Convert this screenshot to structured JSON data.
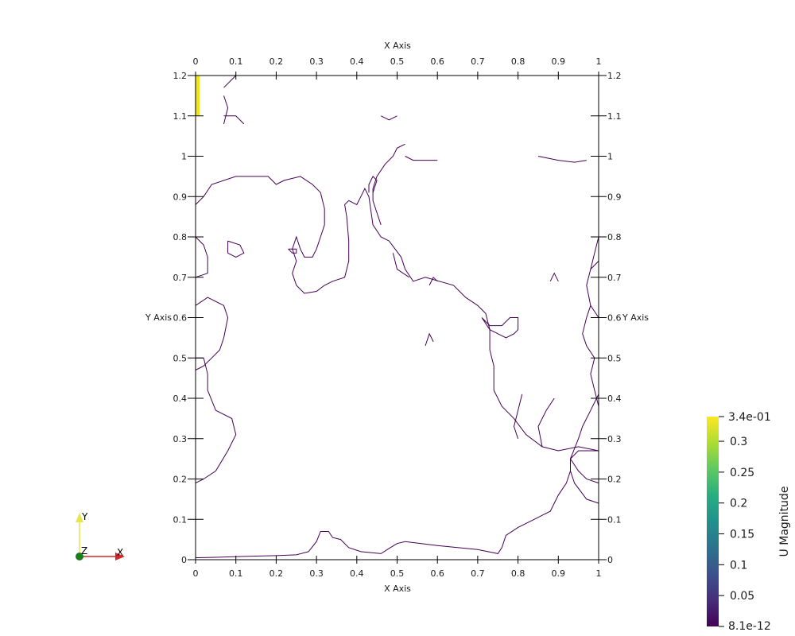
{
  "chart_data": {
    "type": "contour",
    "xlabel": "X Axis",
    "ylabel": "Y Axis",
    "xlim": [
      0,
      1
    ],
    "ylim": [
      0,
      1.2
    ],
    "xticks": [
      "0",
      "0.1",
      "0.2",
      "0.3",
      "0.4",
      "0.5",
      "0.6",
      "0.7",
      "0.8",
      "0.9",
      "1"
    ],
    "yticks": [
      "0",
      "0.1",
      "0.2",
      "0.3",
      "0.4",
      "0.5",
      "0.6",
      "0.7",
      "0.8",
      "0.9",
      "1",
      "1.1",
      "1.2"
    ],
    "contour_color": "#440154",
    "inlet_color": "#f0e51f",
    "inlet_region": {
      "x": [
        0,
        0.01
      ],
      "y": [
        1.1,
        1.2
      ]
    },
    "contours": [
      [
        [
          0.0,
          0.005
        ],
        [
          0.05,
          0.006
        ],
        [
          0.12,
          0.008
        ],
        [
          0.2,
          0.01
        ],
        [
          0.25,
          0.012
        ],
        [
          0.28,
          0.02
        ],
        [
          0.3,
          0.045
        ],
        [
          0.31,
          0.07
        ],
        [
          0.33,
          0.07
        ],
        [
          0.34,
          0.055
        ],
        [
          0.36,
          0.05
        ],
        [
          0.38,
          0.03
        ],
        [
          0.41,
          0.02
        ],
        [
          0.44,
          0.017
        ],
        [
          0.46,
          0.015
        ],
        [
          0.48,
          0.028
        ],
        [
          0.5,
          0.04
        ],
        [
          0.52,
          0.045
        ],
        [
          0.56,
          0.04
        ],
        [
          0.6,
          0.035
        ],
        [
          0.65,
          0.03
        ],
        [
          0.7,
          0.025
        ],
        [
          0.75,
          0.015
        ],
        [
          0.76,
          0.03
        ],
        [
          0.77,
          0.06
        ],
        [
          0.8,
          0.08
        ],
        [
          0.84,
          0.1
        ],
        [
          0.86,
          0.11
        ],
        [
          0.88,
          0.12
        ],
        [
          0.89,
          0.14
        ],
        [
          0.9,
          0.16
        ],
        [
          0.92,
          0.19
        ],
        [
          0.93,
          0.22
        ],
        [
          0.93,
          0.25
        ],
        [
          0.95,
          0.27
        ],
        [
          0.98,
          0.27
        ],
        [
          1.0,
          0.27
        ]
      ],
      [
        [
          0.0,
          0.19
        ],
        [
          0.02,
          0.2
        ],
        [
          0.05,
          0.22
        ],
        [
          0.08,
          0.27
        ],
        [
          0.1,
          0.31
        ],
        [
          0.09,
          0.35
        ],
        [
          0.05,
          0.37
        ],
        [
          0.03,
          0.42
        ],
        [
          0.03,
          0.46
        ],
        [
          0.02,
          0.5
        ],
        [
          0.0,
          0.5
        ]
      ],
      [
        [
          0.0,
          0.63
        ],
        [
          0.03,
          0.65
        ],
        [
          0.07,
          0.63
        ],
        [
          0.08,
          0.6
        ],
        [
          0.07,
          0.55
        ],
        [
          0.06,
          0.52
        ],
        [
          0.04,
          0.5
        ],
        [
          0.02,
          0.48
        ],
        [
          0.0,
          0.47
        ]
      ],
      [
        [
          0.0,
          0.7
        ],
        [
          0.03,
          0.71
        ],
        [
          0.03,
          0.75
        ],
        [
          0.02,
          0.78
        ],
        [
          0.0,
          0.8
        ]
      ],
      [
        [
          0.0,
          0.88
        ],
        [
          0.02,
          0.9
        ],
        [
          0.04,
          0.93
        ],
        [
          0.1,
          0.95
        ],
        [
          0.18,
          0.95
        ],
        [
          0.2,
          0.93
        ],
        [
          0.22,
          0.94
        ],
        [
          0.26,
          0.95
        ],
        [
          0.29,
          0.93
        ],
        [
          0.31,
          0.91
        ],
        [
          0.32,
          0.87
        ],
        [
          0.32,
          0.83
        ],
        [
          0.31,
          0.8
        ],
        [
          0.3,
          0.77
        ],
        [
          0.29,
          0.75
        ],
        [
          0.27,
          0.75
        ],
        [
          0.26,
          0.77
        ],
        [
          0.25,
          0.8
        ],
        [
          0.24,
          0.77
        ],
        [
          0.25,
          0.74
        ],
        [
          0.24,
          0.71
        ],
        [
          0.25,
          0.68
        ],
        [
          0.27,
          0.66
        ],
        [
          0.3,
          0.665
        ],
        [
          0.32,
          0.68
        ],
        [
          0.34,
          0.69
        ],
        [
          0.37,
          0.7
        ],
        [
          0.38,
          0.74
        ],
        [
          0.38,
          0.79
        ],
        [
          0.375,
          0.85
        ],
        [
          0.37,
          0.88
        ],
        [
          0.38,
          0.89
        ],
        [
          0.4,
          0.88
        ],
        [
          0.41,
          0.9
        ],
        [
          0.42,
          0.92
        ],
        [
          0.43,
          0.9
        ],
        [
          0.44,
          0.83
        ],
        [
          0.46,
          0.8
        ],
        [
          0.48,
          0.79
        ],
        [
          0.51,
          0.75
        ],
        [
          0.52,
          0.72
        ],
        [
          0.54,
          0.69
        ],
        [
          0.57,
          0.7
        ],
        [
          0.64,
          0.68
        ],
        [
          0.67,
          0.65
        ],
        [
          0.7,
          0.63
        ],
        [
          0.72,
          0.61
        ],
        [
          0.73,
          0.57
        ],
        [
          0.73,
          0.52
        ],
        [
          0.74,
          0.48
        ],
        [
          0.74,
          0.42
        ],
        [
          0.76,
          0.38
        ],
        [
          0.79,
          0.35
        ],
        [
          0.82,
          0.31
        ],
        [
          0.86,
          0.28
        ],
        [
          0.9,
          0.27
        ],
        [
          0.95,
          0.28
        ],
        [
          1.0,
          0.27
        ]
      ],
      [
        [
          0.46,
          0.83
        ],
        [
          0.45,
          0.86
        ],
        [
          0.44,
          0.89
        ],
        [
          0.44,
          0.92
        ],
        [
          0.45,
          0.95
        ],
        [
          0.47,
          0.98
        ],
        [
          0.49,
          1.0
        ],
        [
          0.5,
          1.02
        ],
        [
          0.52,
          1.03
        ]
      ],
      [
        [
          0.49,
          0.76
        ],
        [
          0.5,
          0.72
        ],
        [
          0.53,
          0.7
        ]
      ],
      [
        [
          0.08,
          0.79
        ],
        [
          0.11,
          0.78
        ],
        [
          0.12,
          0.76
        ],
        [
          0.1,
          0.75
        ],
        [
          0.08,
          0.76
        ],
        [
          0.08,
          0.79
        ]
      ],
      [
        [
          0.23,
          0.77
        ],
        [
          0.24,
          0.76
        ],
        [
          0.25,
          0.76
        ],
        [
          0.25,
          0.77
        ],
        [
          0.23,
          0.77
        ]
      ],
      [
        [
          0.71,
          0.6
        ],
        [
          0.73,
          0.57
        ],
        [
          0.75,
          0.56
        ],
        [
          0.77,
          0.55
        ],
        [
          0.79,
          0.56
        ],
        [
          0.8,
          0.57
        ],
        [
          0.8,
          0.6
        ],
        [
          0.78,
          0.6
        ],
        [
          0.76,
          0.58
        ],
        [
          0.73,
          0.58
        ],
        [
          0.71,
          0.6
        ]
      ],
      [
        [
          0.85,
          1.0
        ],
        [
          0.9,
          0.99
        ],
        [
          0.94,
          0.985
        ],
        [
          0.97,
          0.99
        ]
      ],
      [
        [
          0.52,
          1.0
        ],
        [
          0.54,
          0.99
        ],
        [
          0.56,
          0.99
        ],
        [
          0.6,
          0.99
        ]
      ],
      [
        [
          0.43,
          0.91
        ],
        [
          0.43,
          0.93
        ],
        [
          0.44,
          0.95
        ],
        [
          0.45,
          0.94
        ],
        [
          0.44,
          0.91
        ]
      ],
      [
        [
          0.46,
          1.1
        ],
        [
          0.48,
          1.09
        ],
        [
          0.5,
          1.1
        ]
      ],
      [
        [
          0.07,
          1.17
        ],
        [
          0.09,
          1.19
        ],
        [
          0.1,
          1.2
        ]
      ],
      [
        [
          0.07,
          1.15
        ],
        [
          0.08,
          1.12
        ],
        [
          0.07,
          1.08
        ]
      ],
      [
        [
          0.07,
          1.1
        ],
        [
          0.1,
          1.1
        ],
        [
          0.12,
          1.08
        ]
      ],
      [
        [
          1.0,
          0.41
        ],
        [
          0.98,
          0.37
        ],
        [
          0.96,
          0.33
        ],
        [
          0.95,
          0.3
        ],
        [
          0.93,
          0.25
        ],
        [
          0.93,
          0.22
        ],
        [
          0.94,
          0.19
        ],
        [
          0.97,
          0.15
        ],
        [
          1.0,
          0.14
        ]
      ],
      [
        [
          1.0,
          0.74
        ],
        [
          0.98,
          0.72
        ],
        [
          0.97,
          0.68
        ],
        [
          0.98,
          0.63
        ],
        [
          1.0,
          0.6
        ]
      ],
      [
        [
          1.0,
          0.8
        ],
        [
          0.99,
          0.76
        ],
        [
          0.98,
          0.72
        ]
      ],
      [
        [
          1.0,
          0.38
        ],
        [
          0.99,
          0.42
        ],
        [
          0.98,
          0.46
        ],
        [
          0.99,
          0.5
        ],
        [
          0.97,
          0.53
        ],
        [
          0.96,
          0.56
        ],
        [
          0.97,
          0.6
        ],
        [
          0.98,
          0.63
        ]
      ],
      [
        [
          0.8,
          0.3
        ],
        [
          0.79,
          0.33
        ],
        [
          0.8,
          0.37
        ],
        [
          0.81,
          0.41
        ]
      ],
      [
        [
          0.86,
          0.28
        ],
        [
          0.85,
          0.33
        ],
        [
          0.87,
          0.37
        ],
        [
          0.89,
          0.4
        ]
      ],
      [
        [
          0.93,
          0.25
        ],
        [
          0.95,
          0.22
        ],
        [
          0.97,
          0.2
        ],
        [
          1.0,
          0.19
        ]
      ],
      [
        [
          0.58,
          0.68
        ],
        [
          0.59,
          0.7
        ],
        [
          0.6,
          0.69
        ]
      ],
      [
        [
          0.57,
          0.53
        ],
        [
          0.58,
          0.56
        ],
        [
          0.59,
          0.54
        ]
      ],
      [
        [
          0.88,
          0.69
        ],
        [
          0.89,
          0.71
        ],
        [
          0.9,
          0.69
        ]
      ]
    ],
    "colorbar": {
      "title": "U Magnitude",
      "min_label": "8.1e-12",
      "max_label": "3.4e-01",
      "ticks": [
        {
          "label": "0.05",
          "value": 0.05
        },
        {
          "label": "0.1",
          "value": 0.1
        },
        {
          "label": "0.15",
          "value": 0.15
        },
        {
          "label": "0.2",
          "value": 0.2
        },
        {
          "label": "0.25",
          "value": 0.25
        },
        {
          "label": "0.3",
          "value": 0.3
        }
      ],
      "range": [
        0,
        0.34
      ],
      "colors": [
        "#440154",
        "#472d7b",
        "#3b528b",
        "#2c728e",
        "#21918c",
        "#28ae80",
        "#5ec962",
        "#addc30",
        "#fde725"
      ]
    }
  },
  "orientation_axes": {
    "x_label": "X",
    "y_label": "Y",
    "z_label": "Z",
    "x_color": "#d62728",
    "y_color": "#e6e64c",
    "z_color": "#1a7f1a"
  }
}
